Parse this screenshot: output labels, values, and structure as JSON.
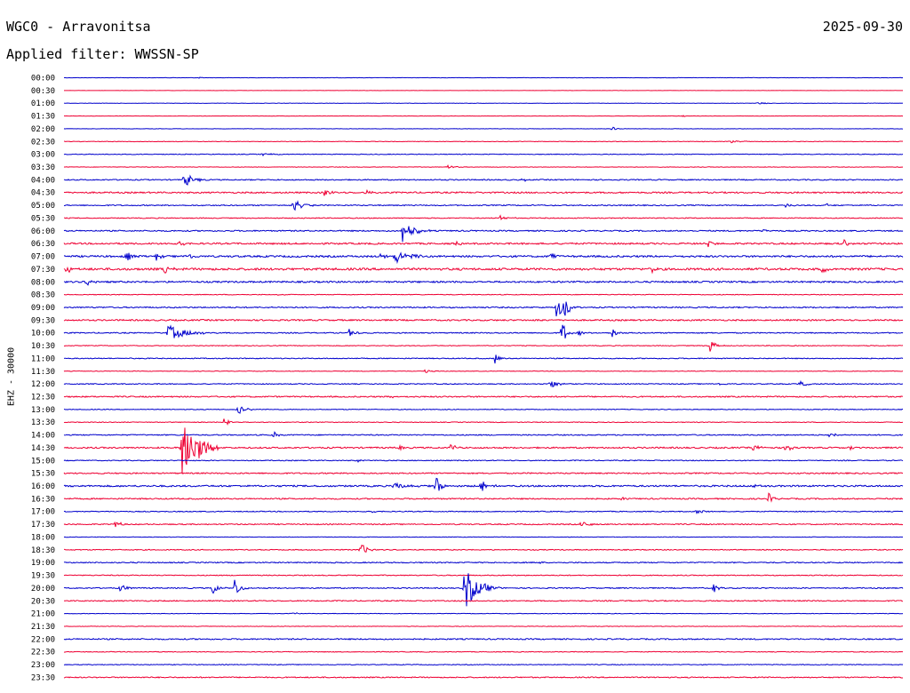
{
  "header": {
    "station": "WGC0 - Arravonitsa",
    "date": "2025-09-30",
    "filter": "Applied filter: WWSSN-SP"
  },
  "chart_data": {
    "type": "line",
    "title": "WGC0 - Arravonitsa",
    "ylabel": "EHZ - 30000",
    "xlabel": "",
    "grid": false,
    "colors": {
      "odd_hour_row": "#0000cc",
      "half_hour_row": "#ee0033"
    },
    "y_tick_labels": [
      "00:00",
      "00:30",
      "01:00",
      "01:30",
      "02:00",
      "02:30",
      "03:00",
      "03:30",
      "04:00",
      "04:30",
      "05:00",
      "05:30",
      "06:00",
      "06:30",
      "07:00",
      "07:30",
      "08:00",
      "08:30",
      "09:00",
      "09:30",
      "10:00",
      "10:30",
      "11:00",
      "11:30",
      "12:00",
      "12:30",
      "13:00",
      "13:30",
      "14:00",
      "14:30",
      "15:00",
      "15:30",
      "16:00",
      "16:30",
      "17:00",
      "17:30",
      "18:00",
      "18:30",
      "19:00",
      "19:30",
      "20:00",
      "20:30",
      "21:00",
      "21:30",
      "22:00",
      "22:30",
      "23:00",
      "23:30"
    ],
    "x_range_minutes": [
      0,
      30
    ],
    "noise_level": [
      0.2,
      0.1,
      0.2,
      0.2,
      0.2,
      0.3,
      0.4,
      0.3,
      0.6,
      0.8,
      0.6,
      0.5,
      0.7,
      0.9,
      1.0,
      1.2,
      0.9,
      0.4,
      0.7,
      0.8,
      0.6,
      0.4,
      0.5,
      0.3,
      0.5,
      0.7,
      0.4,
      0.4,
      0.6,
      0.8,
      0.5,
      0.7,
      0.9,
      0.7,
      0.5,
      0.6,
      0.3,
      0.5,
      0.6,
      0.5,
      0.6,
      0.6,
      0.3,
      0.3,
      0.7,
      0.4,
      0.4,
      0.6
    ],
    "events": [
      {
        "row": 0,
        "minute": 4.8,
        "amplitude": 1.5,
        "duration": 0.2
      },
      {
        "row": 2,
        "minute": 24.8,
        "amplitude": 1.5,
        "duration": 0.6
      },
      {
        "row": 3,
        "minute": 22.1,
        "amplitude": 1.2,
        "duration": 0.3
      },
      {
        "row": 4,
        "minute": 19.6,
        "amplitude": 3,
        "duration": 0.3
      },
      {
        "row": 5,
        "minute": 23.8,
        "amplitude": 1.5,
        "duration": 1.2
      },
      {
        "row": 6,
        "minute": 7.1,
        "amplitude": 1.5,
        "duration": 1.2
      },
      {
        "row": 7,
        "minute": 13.7,
        "amplitude": 2.5,
        "duration": 0.6
      },
      {
        "row": 8,
        "minute": 4.3,
        "amplitude": 9,
        "duration": 0.8
      },
      {
        "row": 8,
        "minute": 16.4,
        "amplitude": 2,
        "duration": 0.4
      },
      {
        "row": 9,
        "minute": 9.3,
        "amplitude": 6,
        "duration": 0.5
      },
      {
        "row": 9,
        "minute": 10.8,
        "amplitude": 4,
        "duration": 0.4
      },
      {
        "row": 10,
        "minute": 8.2,
        "amplitude": 8,
        "duration": 0.8
      },
      {
        "row": 10,
        "minute": 25.8,
        "amplitude": 3,
        "duration": 0.4
      },
      {
        "row": 10,
        "minute": 27.2,
        "amplitude": 3,
        "duration": 0.4
      },
      {
        "row": 11,
        "minute": 15.6,
        "amplitude": 4,
        "duration": 0.6
      },
      {
        "row": 12,
        "minute": 12.1,
        "amplitude": 14,
        "duration": 1.0
      },
      {
        "row": 12,
        "minute": 25.0,
        "amplitude": 3,
        "duration": 0.4
      },
      {
        "row": 13,
        "minute": 4.1,
        "amplitude": 6,
        "duration": 0.4
      },
      {
        "row": 13,
        "minute": 14.0,
        "amplitude": 3,
        "duration": 0.4
      },
      {
        "row": 13,
        "minute": 23.0,
        "amplitude": 4,
        "duration": 0.5
      },
      {
        "row": 13,
        "minute": 27.9,
        "amplitude": 6,
        "duration": 0.4
      },
      {
        "row": 14,
        "minute": 2.2,
        "amplitude": 6,
        "duration": 0.6
      },
      {
        "row": 14,
        "minute": 3.3,
        "amplitude": 5,
        "duration": 0.4
      },
      {
        "row": 14,
        "minute": 4.4,
        "amplitude": 6,
        "duration": 0.4
      },
      {
        "row": 14,
        "minute": 11.3,
        "amplitude": 4,
        "duration": 0.6
      },
      {
        "row": 14,
        "minute": 11.8,
        "amplitude": 9,
        "duration": 1.2
      },
      {
        "row": 14,
        "minute": 17.4,
        "amplitude": 4,
        "duration": 0.6
      },
      {
        "row": 15,
        "minute": 0.1,
        "amplitude": 10,
        "duration": 0.2
      },
      {
        "row": 15,
        "minute": 3.6,
        "amplitude": 8,
        "duration": 0.4
      },
      {
        "row": 15,
        "minute": 21.0,
        "amplitude": 8,
        "duration": 0.3
      },
      {
        "row": 15,
        "minute": 27.1,
        "amplitude": 8,
        "duration": 0.3
      },
      {
        "row": 16,
        "minute": 0.8,
        "amplitude": 5,
        "duration": 0.5
      },
      {
        "row": 17,
        "minute": 7.7,
        "amplitude": 2,
        "duration": 0.2
      },
      {
        "row": 18,
        "minute": 17.6,
        "amplitude": 15,
        "duration": 0.7
      },
      {
        "row": 18,
        "minute": 17.9,
        "amplitude": 12,
        "duration": 0.5
      },
      {
        "row": 19,
        "minute": 16.9,
        "amplitude": 2,
        "duration": 0.3
      },
      {
        "row": 20,
        "minute": 3.7,
        "amplitude": 9,
        "duration": 1.8
      },
      {
        "row": 20,
        "minute": 10.2,
        "amplitude": 5,
        "duration": 0.6
      },
      {
        "row": 20,
        "minute": 17.8,
        "amplitude": 16,
        "duration": 0.4
      },
      {
        "row": 20,
        "minute": 18.4,
        "amplitude": 4,
        "duration": 0.4
      },
      {
        "row": 20,
        "minute": 19.6,
        "amplitude": 6,
        "duration": 0.5
      },
      {
        "row": 21,
        "minute": 23.1,
        "amplitude": 8,
        "duration": 0.6
      },
      {
        "row": 22,
        "minute": 15.4,
        "amplitude": 7,
        "duration": 0.4
      },
      {
        "row": 23,
        "minute": 12.9,
        "amplitude": 2,
        "duration": 0.8
      },
      {
        "row": 24,
        "minute": 17.4,
        "amplitude": 5,
        "duration": 0.7
      },
      {
        "row": 24,
        "minute": 23.4,
        "amplitude": 2,
        "duration": 0.5
      },
      {
        "row": 24,
        "minute": 26.3,
        "amplitude": 4,
        "duration": 0.6
      },
      {
        "row": 25,
        "minute": 11.7,
        "amplitude": 2,
        "duration": 0.4
      },
      {
        "row": 26,
        "minute": 6.2,
        "amplitude": 9,
        "duration": 0.6
      },
      {
        "row": 27,
        "minute": 5.7,
        "amplitude": 8,
        "duration": 0.4
      },
      {
        "row": 28,
        "minute": 7.5,
        "amplitude": 4,
        "duration": 0.4
      },
      {
        "row": 28,
        "minute": 27.4,
        "amplitude": 9,
        "duration": 0.3
      },
      {
        "row": 29,
        "minute": 4.2,
        "amplitude": 45,
        "duration": 1.4
      },
      {
        "row": 29,
        "minute": 12.0,
        "amplitude": 6,
        "duration": 0.4
      },
      {
        "row": 29,
        "minute": 13.8,
        "amplitude": 5,
        "duration": 0.5
      },
      {
        "row": 29,
        "minute": 24.6,
        "amplitude": 5,
        "duration": 0.6
      },
      {
        "row": 29,
        "minute": 25.8,
        "amplitude": 10,
        "duration": 0.4
      },
      {
        "row": 29,
        "minute": 28.1,
        "amplitude": 4,
        "duration": 0.3
      },
      {
        "row": 30,
        "minute": 10.5,
        "amplitude": 2,
        "duration": 0.3
      },
      {
        "row": 32,
        "minute": 11.8,
        "amplitude": 5,
        "duration": 1.0
      },
      {
        "row": 32,
        "minute": 13.3,
        "amplitude": 12,
        "duration": 0.5
      },
      {
        "row": 32,
        "minute": 14.9,
        "amplitude": 7,
        "duration": 0.6
      },
      {
        "row": 32,
        "minute": 24.6,
        "amplitude": 2,
        "duration": 0.4
      },
      {
        "row": 33,
        "minute": 19.9,
        "amplitude": 3,
        "duration": 0.3
      },
      {
        "row": 33,
        "minute": 25.2,
        "amplitude": 7,
        "duration": 0.4
      },
      {
        "row": 34,
        "minute": 11.0,
        "amplitude": 3,
        "duration": 0.3
      },
      {
        "row": 34,
        "minute": 22.6,
        "amplitude": 3,
        "duration": 0.8
      },
      {
        "row": 35,
        "minute": 1.8,
        "amplitude": 8,
        "duration": 0.4
      },
      {
        "row": 35,
        "minute": 18.5,
        "amplitude": 8,
        "duration": 0.5
      },
      {
        "row": 36,
        "minute": 9.6,
        "amplitude": 2,
        "duration": 0.2
      },
      {
        "row": 37,
        "minute": 10.6,
        "amplitude": 8,
        "duration": 0.6
      },
      {
        "row": 38,
        "minute": 17.0,
        "amplitude": 2,
        "duration": 0.3
      },
      {
        "row": 40,
        "minute": 2.0,
        "amplitude": 4,
        "duration": 0.8
      },
      {
        "row": 40,
        "minute": 5.3,
        "amplitude": 8,
        "duration": 0.5
      },
      {
        "row": 40,
        "minute": 6.1,
        "amplitude": 12,
        "duration": 0.5
      },
      {
        "row": 40,
        "minute": 14.3,
        "amplitude": 25,
        "duration": 1.3
      },
      {
        "row": 40,
        "minute": 23.2,
        "amplitude": 6,
        "duration": 0.5
      },
      {
        "row": 42,
        "minute": 8.2,
        "amplitude": 3,
        "duration": 0.3
      }
    ]
  }
}
